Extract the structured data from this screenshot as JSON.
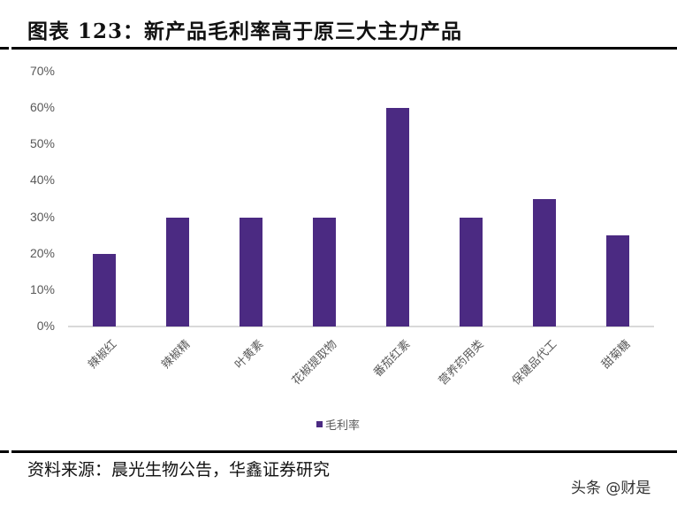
{
  "header": {
    "title": "图表 123：新产品毛利率高于原三大主力产品"
  },
  "chart_data": {
    "type": "bar",
    "title": "图表 123：新产品毛利率高于原三大主力产品",
    "xlabel": "",
    "ylabel": "",
    "categories": [
      "辣椒红",
      "辣椒精",
      "叶黄素",
      "花椒提取物",
      "番茄红素",
      "营养药用类",
      "保健品代工",
      "甜菊糖"
    ],
    "series": [
      {
        "name": "毛利率",
        "values": [
          0.2,
          0.3,
          0.3,
          0.3,
          0.6,
          0.3,
          0.35,
          0.25
        ],
        "color": "#4b2a82"
      }
    ],
    "ylim": [
      0,
      0.7
    ],
    "yticks": [
      "0%",
      "10%",
      "20%",
      "30%",
      "40%",
      "50%",
      "60%",
      "70%"
    ],
    "grid": false,
    "legend_position": "bottom"
  },
  "legend": {
    "label": "毛利率",
    "color": "#4b2a82"
  },
  "footer": {
    "source": "资料来源：晨光生物公告，华鑫证券研究",
    "watermark": "头条 @财是"
  }
}
